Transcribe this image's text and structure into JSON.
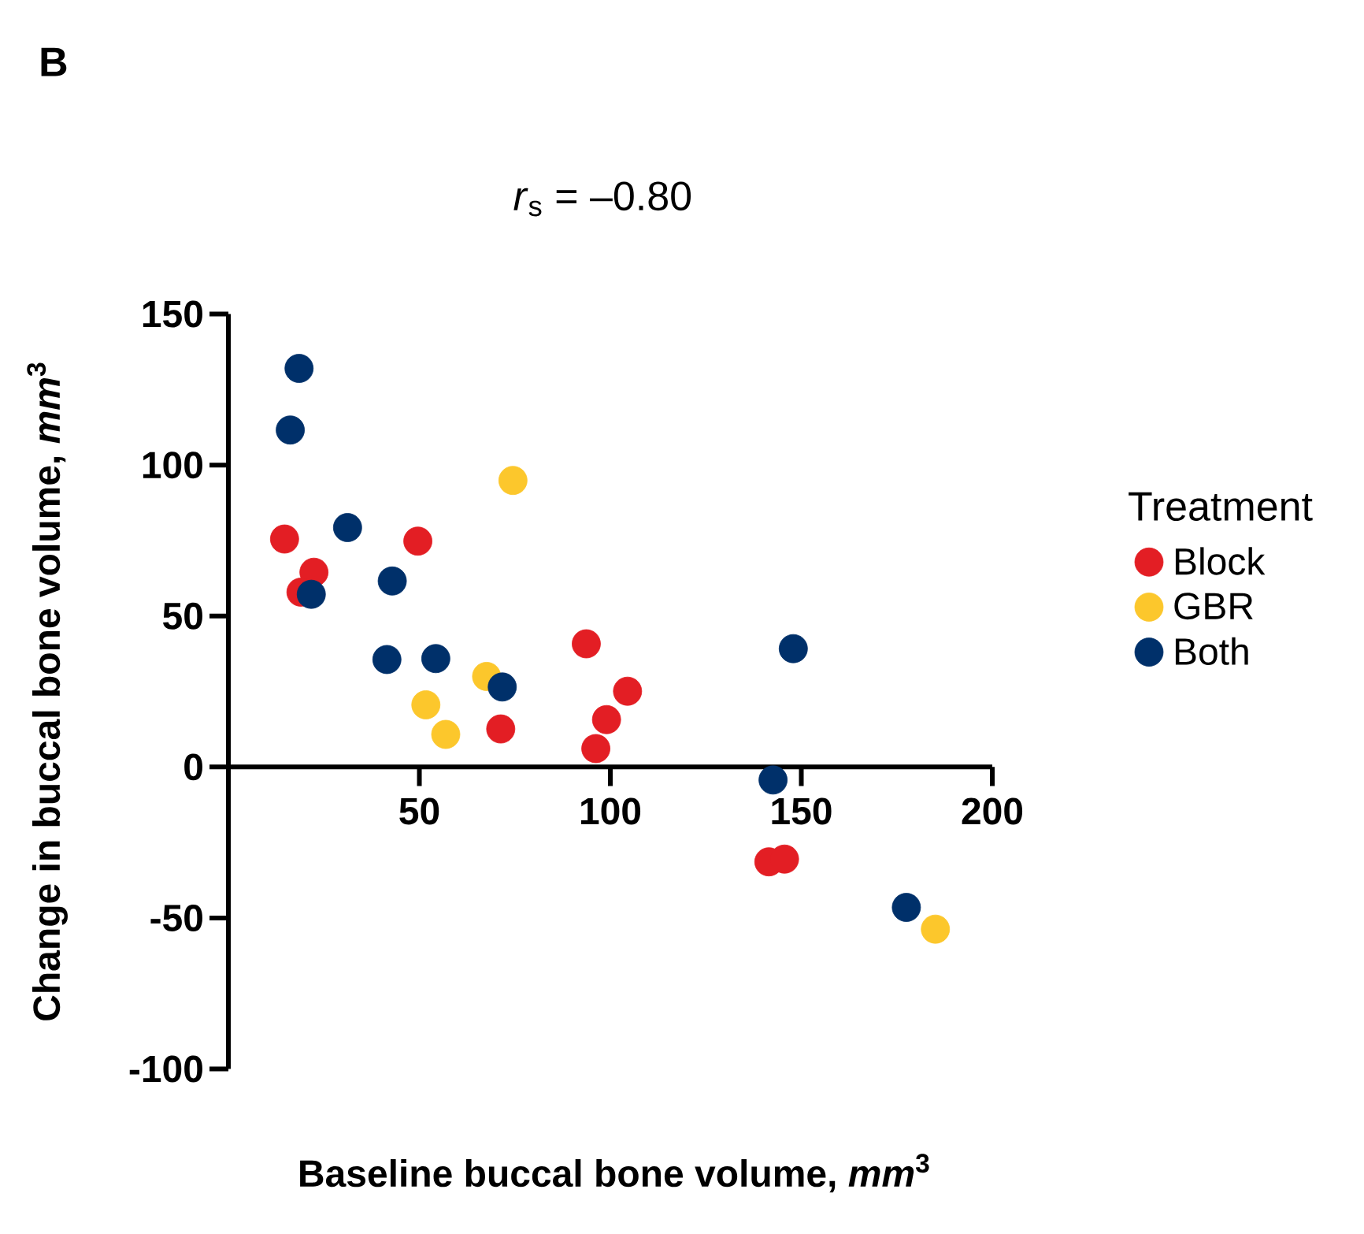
{
  "chart_data": {
    "type": "scatter",
    "title": "*r*$_{s}$ = –0.80",
    "xlabel": "Baseline buccal bone volume, *mm*$^{3}$",
    "ylabel": "Change in buccal bone volume, *mm*$^{3}$",
    "legend_title": "Treatment",
    "annotations": [
      "B"
    ],
    "xlim": [
      0,
      200
    ],
    "xticks": [
      50,
      100,
      150,
      200
    ],
    "ylim": [
      -100,
      150
    ],
    "yticks": [
      -100,
      -50,
      0,
      50,
      100,
      150
    ],
    "legend": "right",
    "marker": "circle",
    "grid": false,
    "series": [
      {
        "name": "Block",
        "color": "#e31e24",
        "x": [
          14.7,
          49.6,
          22.4,
          19.0,
          71.3,
          93.7,
          104.5,
          99.0,
          96.2,
          141.5,
          145.6
        ],
        "values": [
          75.5,
          74.8,
          64.5,
          57.9,
          12.6,
          40.8,
          25.1,
          15.7,
          6.1,
          -31.4,
          -30.5
        ]
      },
      {
        "name": "GBR",
        "color": "#fcc72c",
        "x": [
          74.5,
          67.6,
          51.7,
          56.9,
          185.1
        ],
        "values": [
          94.9,
          30.0,
          20.6,
          10.8,
          -53.7
        ]
      },
      {
        "name": "Both",
        "color": "#00306a",
        "x": [
          18.5,
          16.2,
          31.2,
          21.7,
          42.9,
          41.5,
          54.3,
          71.7,
          147.9,
          142.6,
          177.5
        ],
        "values": [
          132,
          111.6,
          79.3,
          57.2,
          61.6,
          35.6,
          35.9,
          26.5,
          39.2,
          -4.3,
          -46.5
        ]
      }
    ]
  }
}
